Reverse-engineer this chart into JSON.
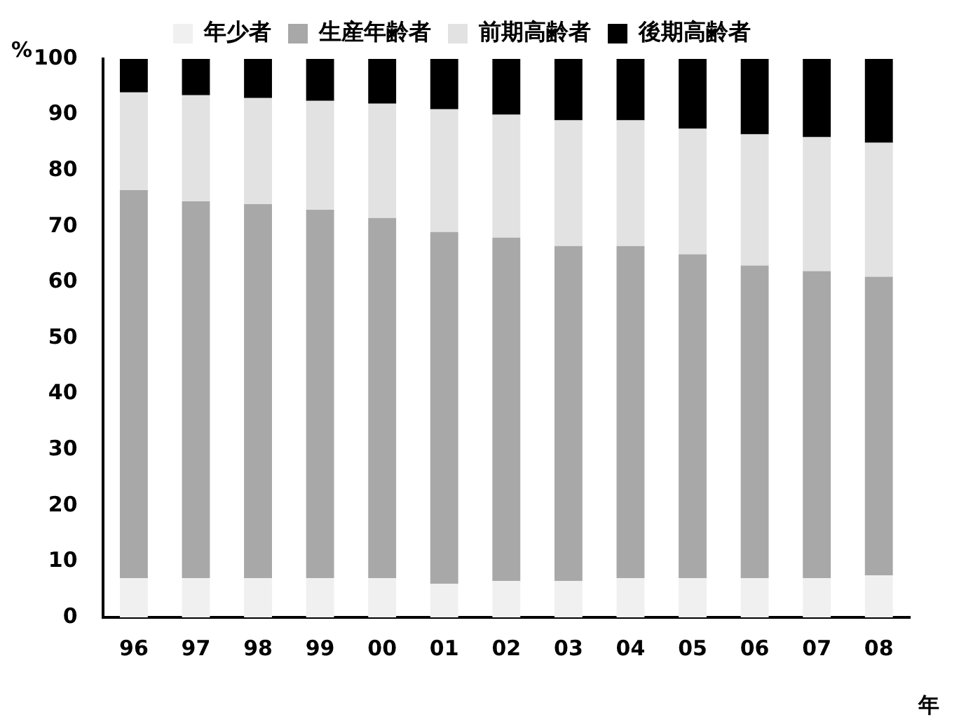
{
  "chart_data": {
    "type": "bar",
    "stacked": true,
    "categories": [
      "96",
      "97",
      "98",
      "99",
      "00",
      "01",
      "02",
      "03",
      "04",
      "05",
      "06",
      "07",
      "08"
    ],
    "series": [
      {
        "name": "年少者",
        "color": "#f0f0f0",
        "values": [
          7,
          7,
          7,
          7,
          7,
          6,
          6.5,
          6.5,
          7,
          7,
          7,
          7,
          7.5
        ]
      },
      {
        "name": "生産年齢者",
        "color": "#a8a8a8",
        "values": [
          69.5,
          67.5,
          67,
          66,
          64.5,
          63,
          61.5,
          60,
          59.5,
          58,
          56,
          55,
          53.5
        ]
      },
      {
        "name": "前期高齢者",
        "color": "#e2e2e2",
        "values": [
          17.5,
          19,
          19,
          19.5,
          20.5,
          22,
          22,
          22.5,
          22.5,
          22.5,
          23.5,
          24,
          24
        ]
      },
      {
        "name": "後期高齢者",
        "color": "#000000",
        "values": [
          6,
          6.5,
          7,
          7.5,
          8,
          9,
          10,
          11,
          11,
          12.5,
          13.5,
          14,
          15
        ]
      }
    ],
    "xlabel": "年",
    "ylabel": "%",
    "ylim": [
      0,
      100
    ],
    "yticks": [
      0,
      10,
      20,
      30,
      40,
      50,
      60,
      70,
      80,
      90,
      100
    ],
    "grid": false,
    "legend": "top"
  }
}
